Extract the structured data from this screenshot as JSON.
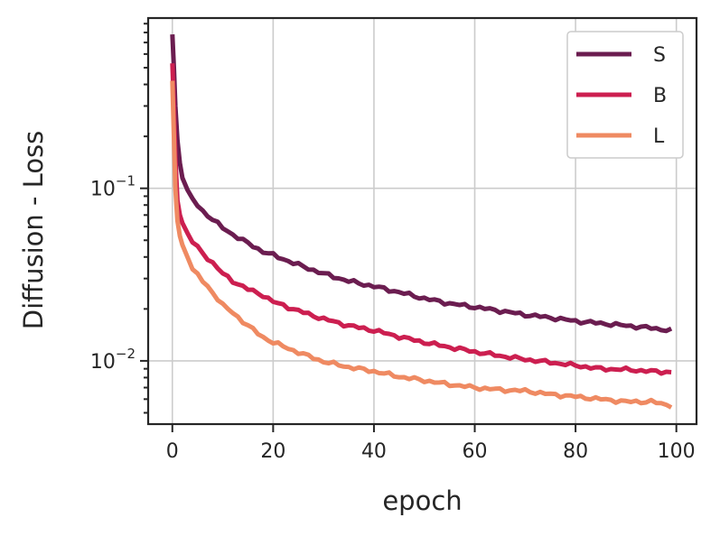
{
  "chart_data": {
    "type": "line",
    "title": "",
    "xlabel": "epoch",
    "ylabel": "Diffusion - Loss",
    "yscale": "log",
    "xlim": [
      -4.8,
      104
    ],
    "ylim": [
      0.0043,
      0.97
    ],
    "grid": true,
    "legend_position": "top-right",
    "x_ticks": [
      {
        "value": 0,
        "label": "0"
      },
      {
        "value": 20,
        "label": "20"
      },
      {
        "value": 40,
        "label": "40"
      },
      {
        "value": 60,
        "label": "60"
      },
      {
        "value": 80,
        "label": "80"
      },
      {
        "value": 100,
        "label": "100"
      }
    ],
    "y_ticks": [
      {
        "value": 0.1,
        "base": "10",
        "exp": "−1"
      },
      {
        "value": 0.01,
        "base": "10",
        "exp": "−2"
      }
    ],
    "series": [
      {
        "name": "S",
        "color": "#6b1d50",
        "x": [
          0,
          0.3,
          0.6,
          1,
          1.5,
          2,
          3,
          4,
          6,
          8,
          10,
          12,
          15,
          18,
          20,
          25,
          30,
          35,
          40,
          45,
          50,
          55,
          60,
          65,
          70,
          75,
          80,
          85,
          90,
          95,
          99
        ],
        "y": [
          0.78,
          0.5,
          0.3,
          0.19,
          0.14,
          0.115,
          0.098,
          0.086,
          0.074,
          0.066,
          0.059,
          0.054,
          0.048,
          0.043,
          0.041,
          0.036,
          0.032,
          0.029,
          0.027,
          0.025,
          0.023,
          0.0215,
          0.0205,
          0.0195,
          0.0185,
          0.0178,
          0.017,
          0.0165,
          0.016,
          0.0155,
          0.015
        ]
      },
      {
        "name": "B",
        "color": "#cc1f50",
        "x": [
          0,
          0.3,
          0.6,
          1,
          1.5,
          2,
          3,
          4,
          6,
          8,
          10,
          12,
          15,
          18,
          20,
          25,
          30,
          35,
          40,
          45,
          50,
          55,
          60,
          65,
          70,
          75,
          80,
          85,
          90,
          95,
          99
        ],
        "y": [
          0.53,
          0.3,
          0.15,
          0.085,
          0.07,
          0.063,
          0.055,
          0.049,
          0.042,
          0.037,
          0.032,
          0.029,
          0.026,
          0.024,
          0.022,
          0.0195,
          0.0175,
          0.016,
          0.015,
          0.0138,
          0.0128,
          0.012,
          0.0113,
          0.0107,
          0.0102,
          0.0098,
          0.0094,
          0.009,
          0.0089,
          0.0087,
          0.0086
        ]
      },
      {
        "name": "L",
        "color": "#ef8a62",
        "x": [
          0,
          0.3,
          0.6,
          1,
          1.5,
          2,
          3,
          4,
          6,
          8,
          10,
          12,
          15,
          18,
          20,
          25,
          30,
          35,
          40,
          45,
          50,
          55,
          60,
          65,
          70,
          75,
          80,
          85,
          90,
          95,
          99
        ],
        "y": [
          0.42,
          0.2,
          0.1,
          0.065,
          0.053,
          0.047,
          0.04,
          0.034,
          0.029,
          0.025,
          0.021,
          0.019,
          0.016,
          0.0137,
          0.0128,
          0.0112,
          0.0099,
          0.0092,
          0.0087,
          0.0081,
          0.0077,
          0.0073,
          0.007,
          0.0068,
          0.0067,
          0.0064,
          0.0062,
          0.006,
          0.0058,
          0.0058,
          0.0055
        ]
      }
    ]
  }
}
